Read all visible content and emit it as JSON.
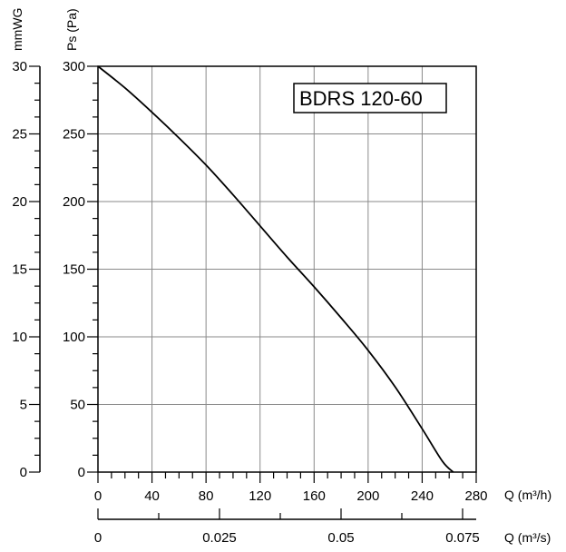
{
  "chart_data": {
    "type": "line",
    "title": "BDRS 120-60",
    "x": {
      "label": "Q (m³/h)",
      "range": [
        0,
        280
      ],
      "ticks": [
        0,
        40,
        80,
        120,
        160,
        200,
        240,
        280
      ],
      "tick_labels": [
        "0",
        "40",
        "80",
        "120",
        "160",
        "200",
        "240",
        "280"
      ]
    },
    "y": {
      "label": "Ps (Pa)",
      "range": [
        0,
        300
      ],
      "ticks": [
        0,
        50,
        100,
        150,
        200,
        250,
        300
      ],
      "tick_labels": [
        "0",
        "50",
        "100",
        "150",
        "200",
        "250",
        "300"
      ]
    },
    "y2": {
      "label": "mmWG",
      "range": [
        0,
        30
      ],
      "ticks": [
        0,
        5,
        10,
        15,
        20,
        25,
        30
      ],
      "tick_labels": [
        "0",
        "5",
        "10",
        "15",
        "20",
        "25",
        "30"
      ]
    },
    "x2": {
      "label": "Q (m³/s)",
      "range": [
        0,
        0.0778
      ],
      "ticks": [
        0,
        0.025,
        0.05,
        0.075
      ],
      "tick_labels": [
        "0",
        "0.025",
        "0.05",
        "0.075"
      ]
    },
    "grid": true,
    "series": [
      {
        "points": [
          [
            0,
            300
          ],
          [
            20,
            284
          ],
          [
            40,
            266
          ],
          [
            60,
            247
          ],
          [
            80,
            227
          ],
          [
            100,
            205
          ],
          [
            120,
            182
          ],
          [
            140,
            159
          ],
          [
            160,
            137
          ],
          [
            180,
            114
          ],
          [
            200,
            90
          ],
          [
            220,
            63
          ],
          [
            240,
            32
          ],
          [
            255,
            8
          ],
          [
            263,
            0
          ]
        ]
      }
    ]
  }
}
